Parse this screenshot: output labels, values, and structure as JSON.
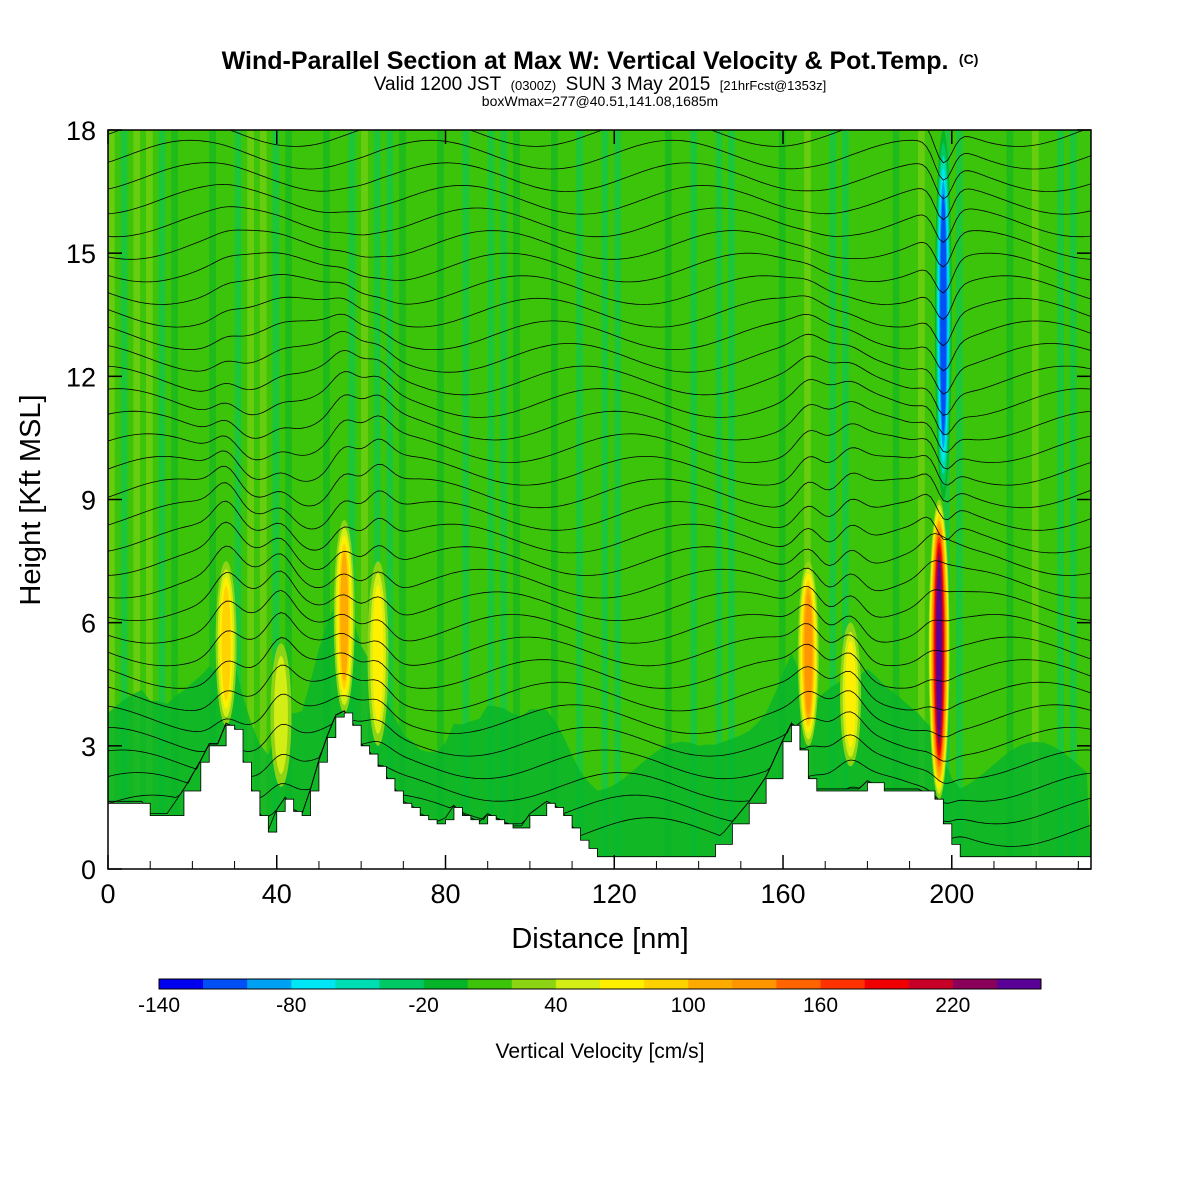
{
  "title": {
    "main": "Wind-Parallel Section at Max W: Vertical Velocity & Pot.Temp.",
    "copyright": "(C)",
    "valid_prefix": "Valid 1200 JST",
    "valid_z": "(0300Z)",
    "valid_date": "SUN 3 May 2015",
    "forecast": "[21hrFcst@1353z]",
    "boxwmax": "boxWmax=277@40.51,141.08,1685m"
  },
  "chart_data": {
    "type": "heatmap",
    "xlabel": "Distance [nm]",
    "ylabel": "Height [Kft MSL]",
    "xlim": [
      0,
      233
    ],
    "ylim": [
      0,
      18
    ],
    "x_ticks": [
      0,
      40,
      80,
      120,
      160,
      200
    ],
    "x_tick_labels": [
      "0",
      "40",
      "80",
      "120",
      "160",
      "200"
    ],
    "y_ticks": [
      0,
      3,
      6,
      9,
      12,
      15,
      18
    ],
    "y_tick_labels": [
      "0",
      "3",
      "6",
      "9",
      "12",
      "15",
      "18"
    ],
    "colorbar": {
      "label": "Vertical Velocity [cm/s]",
      "boundaries": [
        -140,
        -120,
        -100,
        -80,
        -60,
        -40,
        -20,
        0,
        20,
        40,
        60,
        80,
        100,
        120,
        140,
        160,
        180,
        200,
        220,
        240,
        260
      ],
      "tick_values": [
        -140,
        -80,
        -20,
        40,
        100,
        160,
        220
      ],
      "tick_labels": [
        "-140",
        "-80",
        "-20",
        "40",
        "100",
        "160",
        "220"
      ],
      "colors": [
        "#0000f0",
        "#0050f5",
        "#00a0f5",
        "#00e6f5",
        "#00dcb4",
        "#00c864",
        "#06b42a",
        "#3cc40a",
        "#8cd414",
        "#d2ee14",
        "#fff000",
        "#ffd200",
        "#ffaa00",
        "#ff9600",
        "#ff6400",
        "#ff3200",
        "#f00000",
        "#c80028",
        "#8c005a",
        "#5a0096"
      ]
    },
    "terrain": [
      [
        0,
        1.6
      ],
      [
        4,
        1.6
      ],
      [
        8,
        1.6
      ],
      [
        10,
        1.3
      ],
      [
        14,
        1.3
      ],
      [
        18,
        1.9
      ],
      [
        22,
        2.6
      ],
      [
        24,
        3.0
      ],
      [
        26,
        3.0
      ],
      [
        28,
        3.5
      ],
      [
        30,
        3.4
      ],
      [
        32,
        2.6
      ],
      [
        34,
        1.9
      ],
      [
        36,
        1.3
      ],
      [
        38,
        0.9
      ],
      [
        40,
        1.4
      ],
      [
        42,
        1.7
      ],
      [
        44,
        1.4
      ],
      [
        46,
        1.3
      ],
      [
        48,
        1.9
      ],
      [
        50,
        2.6
      ],
      [
        52,
        3.2
      ],
      [
        54,
        3.7
      ],
      [
        56,
        3.8
      ],
      [
        58,
        3.5
      ],
      [
        60,
        3.0
      ],
      [
        62,
        2.8
      ],
      [
        64,
        2.5
      ],
      [
        66,
        2.2
      ],
      [
        68,
        1.9
      ],
      [
        70,
        1.6
      ],
      [
        72,
        1.5
      ],
      [
        74,
        1.3
      ],
      [
        76,
        1.2
      ],
      [
        78,
        1.1
      ],
      [
        80,
        1.2
      ],
      [
        82,
        1.5
      ],
      [
        84,
        1.3
      ],
      [
        86,
        1.2
      ],
      [
        88,
        1.1
      ],
      [
        90,
        1.3
      ],
      [
        92,
        1.2
      ],
      [
        94,
        1.1
      ],
      [
        96,
        1.0
      ],
      [
        98,
        1.0
      ],
      [
        100,
        1.3
      ],
      [
        104,
        1.6
      ],
      [
        106,
        1.5
      ],
      [
        108,
        1.3
      ],
      [
        110,
        1.0
      ],
      [
        112,
        0.7
      ],
      [
        114,
        0.5
      ],
      [
        116,
        0.3
      ],
      [
        120,
        0.3
      ],
      [
        124,
        0.3
      ],
      [
        128,
        0.3
      ],
      [
        132,
        0.3
      ],
      [
        136,
        0.3
      ],
      [
        140,
        0.3
      ],
      [
        144,
        0.6
      ],
      [
        148,
        1.1
      ],
      [
        152,
        1.6
      ],
      [
        156,
        2.2
      ],
      [
        160,
        3.1
      ],
      [
        162,
        3.5
      ],
      [
        164,
        2.9
      ],
      [
        166,
        2.2
      ],
      [
        168,
        1.9
      ],
      [
        172,
        1.9
      ],
      [
        176,
        1.9
      ],
      [
        178,
        1.9
      ],
      [
        180,
        2.1
      ],
      [
        184,
        1.9
      ],
      [
        188,
        1.9
      ],
      [
        192,
        1.9
      ],
      [
        196,
        1.7
      ],
      [
        198,
        1.1
      ],
      [
        200,
        0.6
      ],
      [
        202,
        0.3
      ],
      [
        206,
        0.3
      ],
      [
        212,
        0.3
      ],
      [
        218,
        0.3
      ],
      [
        224,
        0.3
      ],
      [
        230,
        0.3
      ],
      [
        233,
        0.3
      ]
    ],
    "updraft_cores": [
      {
        "x": 28,
        "y_min": 3.5,
        "y_max": 7.5,
        "peak_cm_s": 90
      },
      {
        "x": 41,
        "y_min": 2.0,
        "y_max": 5.5,
        "peak_cm_s": 60
      },
      {
        "x": 56,
        "y_min": 3.8,
        "y_max": 8.5,
        "peak_cm_s": 120
      },
      {
        "x": 64,
        "y_min": 3.0,
        "y_max": 7.5,
        "peak_cm_s": 70
      },
      {
        "x": 166,
        "y_min": 3.0,
        "y_max": 7.5,
        "peak_cm_s": 140
      },
      {
        "x": 176,
        "y_min": 2.5,
        "y_max": 6.0,
        "peak_cm_s": 80
      },
      {
        "x": 197,
        "y_min": 1.7,
        "y_max": 9.0,
        "peak_cm_s": 277
      }
    ],
    "downdraft_cores": [
      {
        "x": 198,
        "y_min": 9.0,
        "y_max": 18.0,
        "peak_cm_s": -110
      }
    ]
  }
}
